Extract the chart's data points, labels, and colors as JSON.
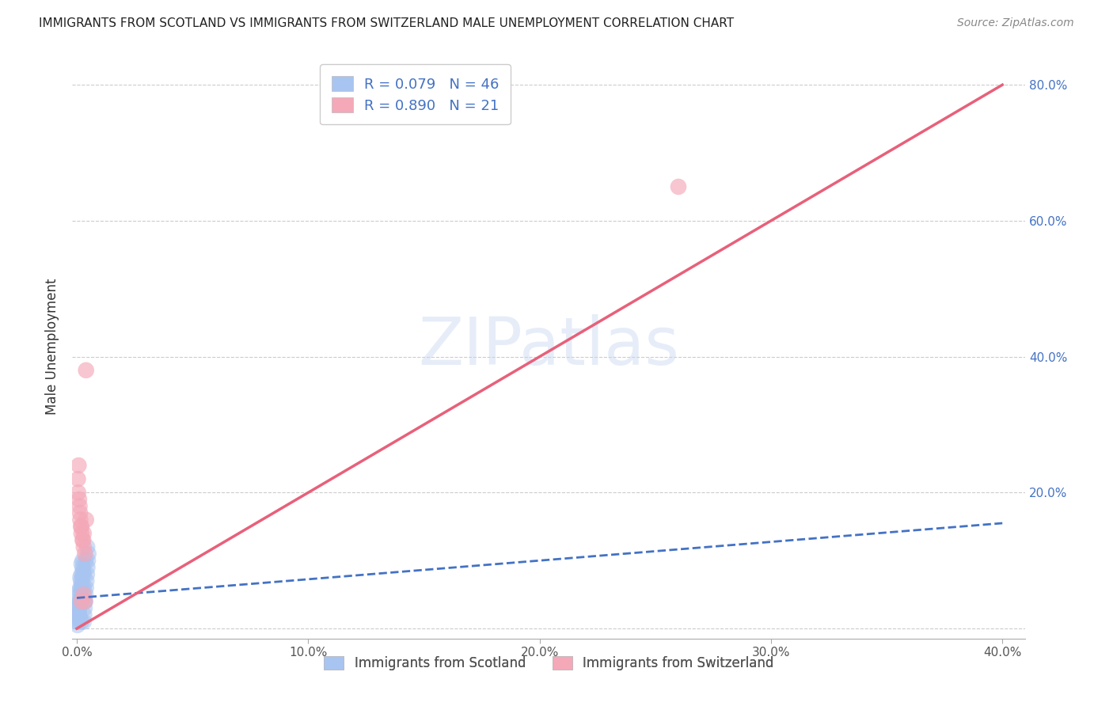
{
  "title": "IMMIGRANTS FROM SCOTLAND VS IMMIGRANTS FROM SWITZERLAND MALE UNEMPLOYMENT CORRELATION CHART",
  "source": "Source: ZipAtlas.com",
  "ylabel": "Male Unemployment",
  "xlim": [
    -0.002,
    0.41
  ],
  "ylim": [
    -0.015,
    0.845
  ],
  "xticks": [
    0.0,
    0.1,
    0.2,
    0.3,
    0.4
  ],
  "xticklabels": [
    "0.0%",
    "10.0%",
    "20.0%",
    "30.0%",
    "40.0%"
  ],
  "yticks": [
    0.0,
    0.2,
    0.4,
    0.6,
    0.8
  ],
  "yticklabels_right": [
    "",
    "20.0%",
    "40.0%",
    "60.0%",
    "80.0%"
  ],
  "scotland_R": 0.079,
  "scotland_N": 46,
  "switzerland_R": 0.89,
  "switzerland_N": 21,
  "scotland_color": "#a8c4f0",
  "switzerland_color": "#f4a8b8",
  "scotland_line_color": "#4472c4",
  "switzerland_line_color": "#e8607a",
  "legend_scotland_label": "Immigrants from Scotland",
  "legend_switzerland_label": "Immigrants from Switzerland",
  "scotland_line": [
    [
      0.0,
      0.045
    ],
    [
      0.4,
      0.155
    ]
  ],
  "switzerland_line": [
    [
      0.0,
      0.0
    ],
    [
      0.4,
      0.8
    ]
  ],
  "scotland_points": [
    [
      0.0005,
      0.01
    ],
    [
      0.001,
      0.02
    ],
    [
      0.0015,
      0.015
    ],
    [
      0.002,
      0.01
    ],
    [
      0.0008,
      0.03
    ],
    [
      0.0012,
      0.05
    ],
    [
      0.0018,
      0.07
    ],
    [
      0.0025,
      0.09
    ],
    [
      0.003,
      0.06
    ],
    [
      0.0035,
      0.04
    ],
    [
      0.0006,
      0.02
    ],
    [
      0.0014,
      0.04
    ],
    [
      0.0022,
      0.06
    ],
    [
      0.003,
      0.08
    ],
    [
      0.0038,
      0.1
    ],
    [
      0.0045,
      0.12
    ],
    [
      0.0003,
      0.01
    ],
    [
      0.0007,
      0.025
    ],
    [
      0.001,
      0.04
    ],
    [
      0.0015,
      0.06
    ],
    [
      0.002,
      0.08
    ],
    [
      0.0025,
      0.1
    ],
    [
      0.0005,
      0.035
    ],
    [
      0.001,
      0.055
    ],
    [
      0.0015,
      0.075
    ],
    [
      0.002,
      0.095
    ],
    [
      0.0003,
      0.005
    ],
    [
      0.0007,
      0.015
    ],
    [
      0.001,
      0.025
    ],
    [
      0.0013,
      0.035
    ],
    [
      0.0016,
      0.045
    ],
    [
      0.0019,
      0.055
    ],
    [
      0.0022,
      0.065
    ],
    [
      0.0025,
      0.075
    ],
    [
      0.0028,
      0.085
    ],
    [
      0.003,
      0.01
    ],
    [
      0.0032,
      0.02
    ],
    [
      0.0034,
      0.03
    ],
    [
      0.0036,
      0.04
    ],
    [
      0.0038,
      0.05
    ],
    [
      0.004,
      0.06
    ],
    [
      0.0042,
      0.07
    ],
    [
      0.0044,
      0.08
    ],
    [
      0.0046,
      0.09
    ],
    [
      0.0048,
      0.1
    ],
    [
      0.005,
      0.11
    ]
  ],
  "switzerland_points": [
    [
      0.0005,
      0.22
    ],
    [
      0.001,
      0.19
    ],
    [
      0.0015,
      0.16
    ],
    [
      0.002,
      0.14
    ],
    [
      0.0008,
      0.24
    ],
    [
      0.0012,
      0.18
    ],
    [
      0.0018,
      0.15
    ],
    [
      0.0025,
      0.13
    ],
    [
      0.003,
      0.12
    ],
    [
      0.0035,
      0.11
    ],
    [
      0.0006,
      0.2
    ],
    [
      0.0014,
      0.17
    ],
    [
      0.002,
      0.15
    ],
    [
      0.0028,
      0.13
    ],
    [
      0.004,
      0.38
    ],
    [
      0.26,
      0.65
    ],
    [
      0.003,
      0.05
    ],
    [
      0.0035,
      0.04
    ],
    [
      0.003,
      0.14
    ],
    [
      0.004,
      0.16
    ],
    [
      0.002,
      0.04
    ]
  ],
  "watermark": "ZIPatlas"
}
